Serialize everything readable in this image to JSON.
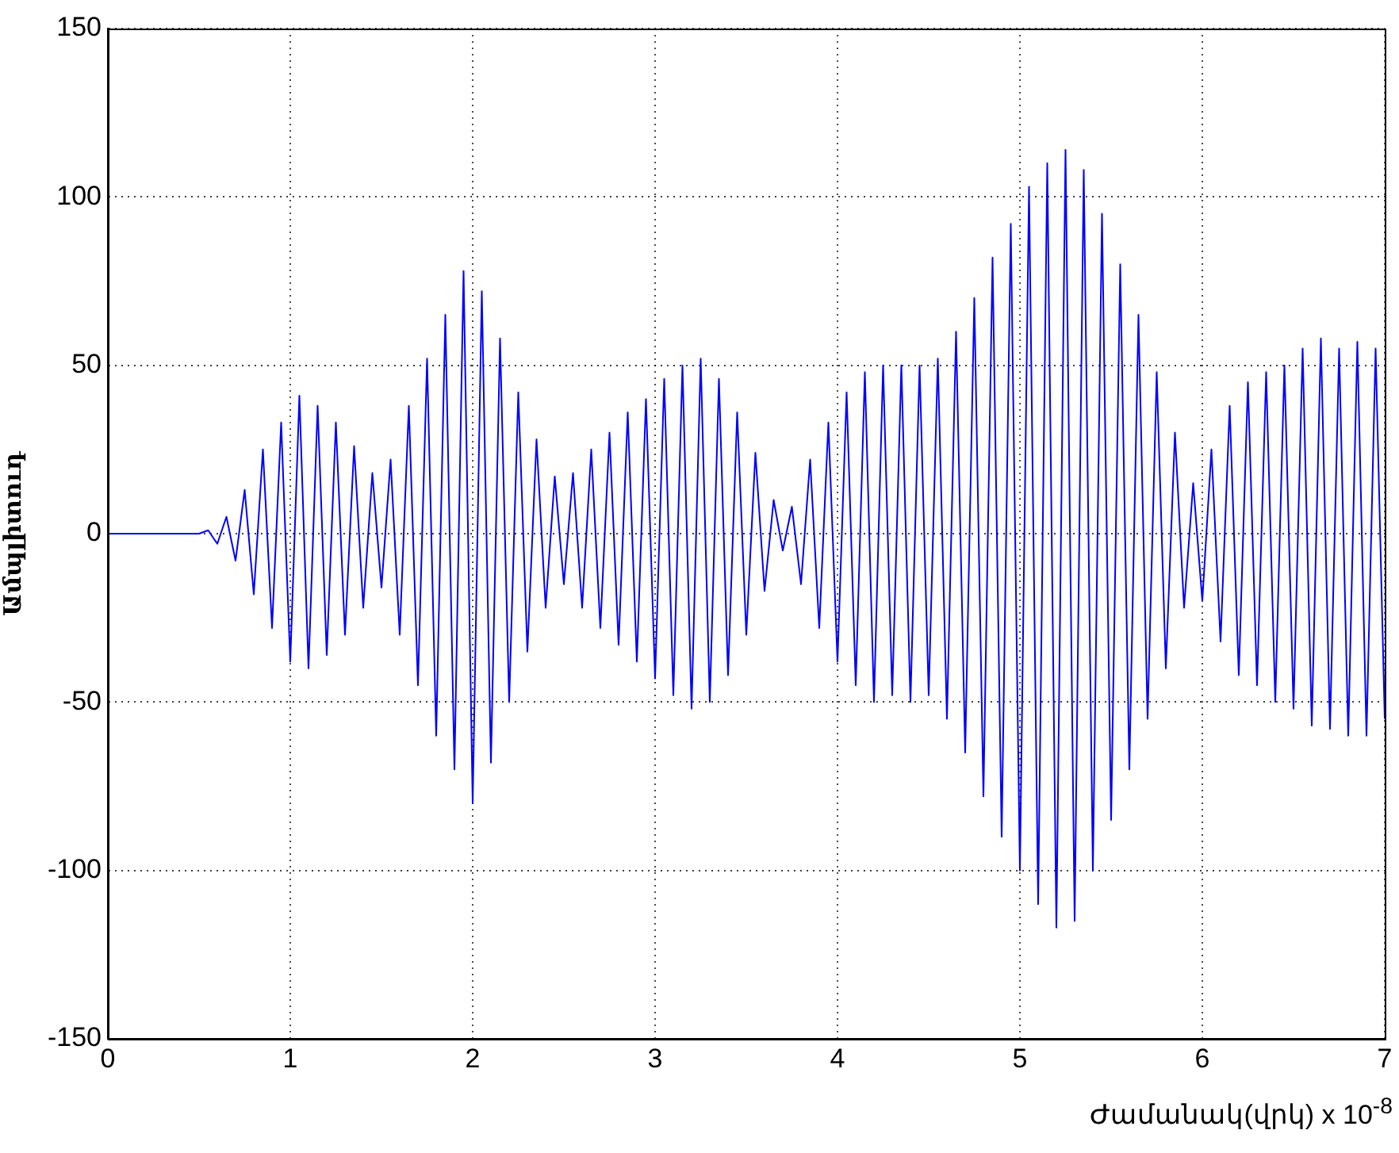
{
  "chart_data": {
    "type": "line",
    "xlabel": "Ժամանակ(վրկ) x 10$^{-8}$",
    "ylabel": "Ամպլիտուդ",
    "xlim": [
      0,
      7
    ],
    "xticks": [
      0,
      1,
      2,
      3,
      4,
      5,
      6,
      7
    ],
    "ylim": [
      -150,
      150
    ],
    "yticks": [
      -150,
      -100,
      -50,
      0,
      50,
      100,
      150
    ],
    "grid": true,
    "marker": "none",
    "line_style": "solid",
    "series": [
      {
        "color": "#0000ff",
        "x": [
          0,
          0.5,
          0.55,
          0.6,
          0.65,
          0.7,
          0.75,
          0.8,
          0.85,
          0.9,
          0.95,
          1.0,
          1.05,
          1.1,
          1.15,
          1.2,
          1.25,
          1.3,
          1.35,
          1.4,
          1.45,
          1.5,
          1.55,
          1.6,
          1.65,
          1.7,
          1.75,
          1.8,
          1.85,
          1.9,
          1.95,
          2.0,
          2.05,
          2.1,
          2.15,
          2.2,
          2.25,
          2.3,
          2.35,
          2.4,
          2.45,
          2.5,
          2.55,
          2.6,
          2.65,
          2.7,
          2.75,
          2.8,
          2.85,
          2.9,
          2.95,
          3.0,
          3.05,
          3.1,
          3.15,
          3.2,
          3.25,
          3.3,
          3.35,
          3.4,
          3.45,
          3.5,
          3.55,
          3.6,
          3.65,
          3.7,
          3.75,
          3.8,
          3.85,
          3.9,
          3.95,
          4.0,
          4.05,
          4.1,
          4.15,
          4.2,
          4.25,
          4.3,
          4.35,
          4.4,
          4.45,
          4.5,
          4.55,
          4.6,
          4.65,
          4.7,
          4.75,
          4.8,
          4.85,
          4.9,
          4.95,
          5.0,
          5.05,
          5.1,
          5.15,
          5.2,
          5.25,
          5.3,
          5.35,
          5.4,
          5.45,
          5.5,
          5.55,
          5.6,
          5.65,
          5.7,
          5.75,
          5.8,
          5.85,
          5.9,
          5.95,
          6.0,
          6.05,
          6.1,
          6.15,
          6.2,
          6.25,
          6.3,
          6.35,
          6.4,
          6.45,
          6.5,
          6.55,
          6.6,
          6.65,
          6.7,
          6.75,
          6.8,
          6.85,
          6.9,
          6.95,
          7.0
        ],
        "values": [
          0,
          0,
          1,
          -3,
          5,
          -8,
          13,
          -18,
          25,
          -28,
          33,
          -38,
          41,
          -40,
          38,
          -36,
          33,
          -30,
          26,
          -22,
          18,
          -16,
          22,
          -30,
          38,
          -45,
          52,
          -60,
          65,
          -70,
          78,
          -80,
          72,
          -68,
          58,
          -50,
          42,
          -35,
          28,
          -22,
          17,
          -15,
          18,
          -22,
          25,
          -28,
          30,
          -33,
          36,
          -38,
          40,
          -43,
          46,
          -48,
          50,
          -52,
          52,
          -50,
          46,
          -42,
          36,
          -30,
          24,
          -17,
          10,
          -5,
          8,
          -15,
          22,
          -28,
          33,
          -38,
          42,
          -45,
          48,
          -50,
          50,
          -48,
          50,
          -50,
          50,
          -48,
          52,
          -55,
          60,
          -65,
          70,
          -78,
          82,
          -90,
          92,
          -100,
          103,
          -110,
          110,
          -117,
          114,
          -115,
          108,
          -100,
          95,
          -85,
          80,
          -70,
          65,
          -55,
          48,
          -40,
          30,
          -22,
          15,
          -20,
          25,
          -32,
          38,
          -42,
          45,
          -45,
          48,
          -50,
          50,
          -52,
          55,
          -57,
          58,
          -58,
          55,
          -60,
          57,
          -60,
          55,
          -55
        ]
      }
    ]
  }
}
